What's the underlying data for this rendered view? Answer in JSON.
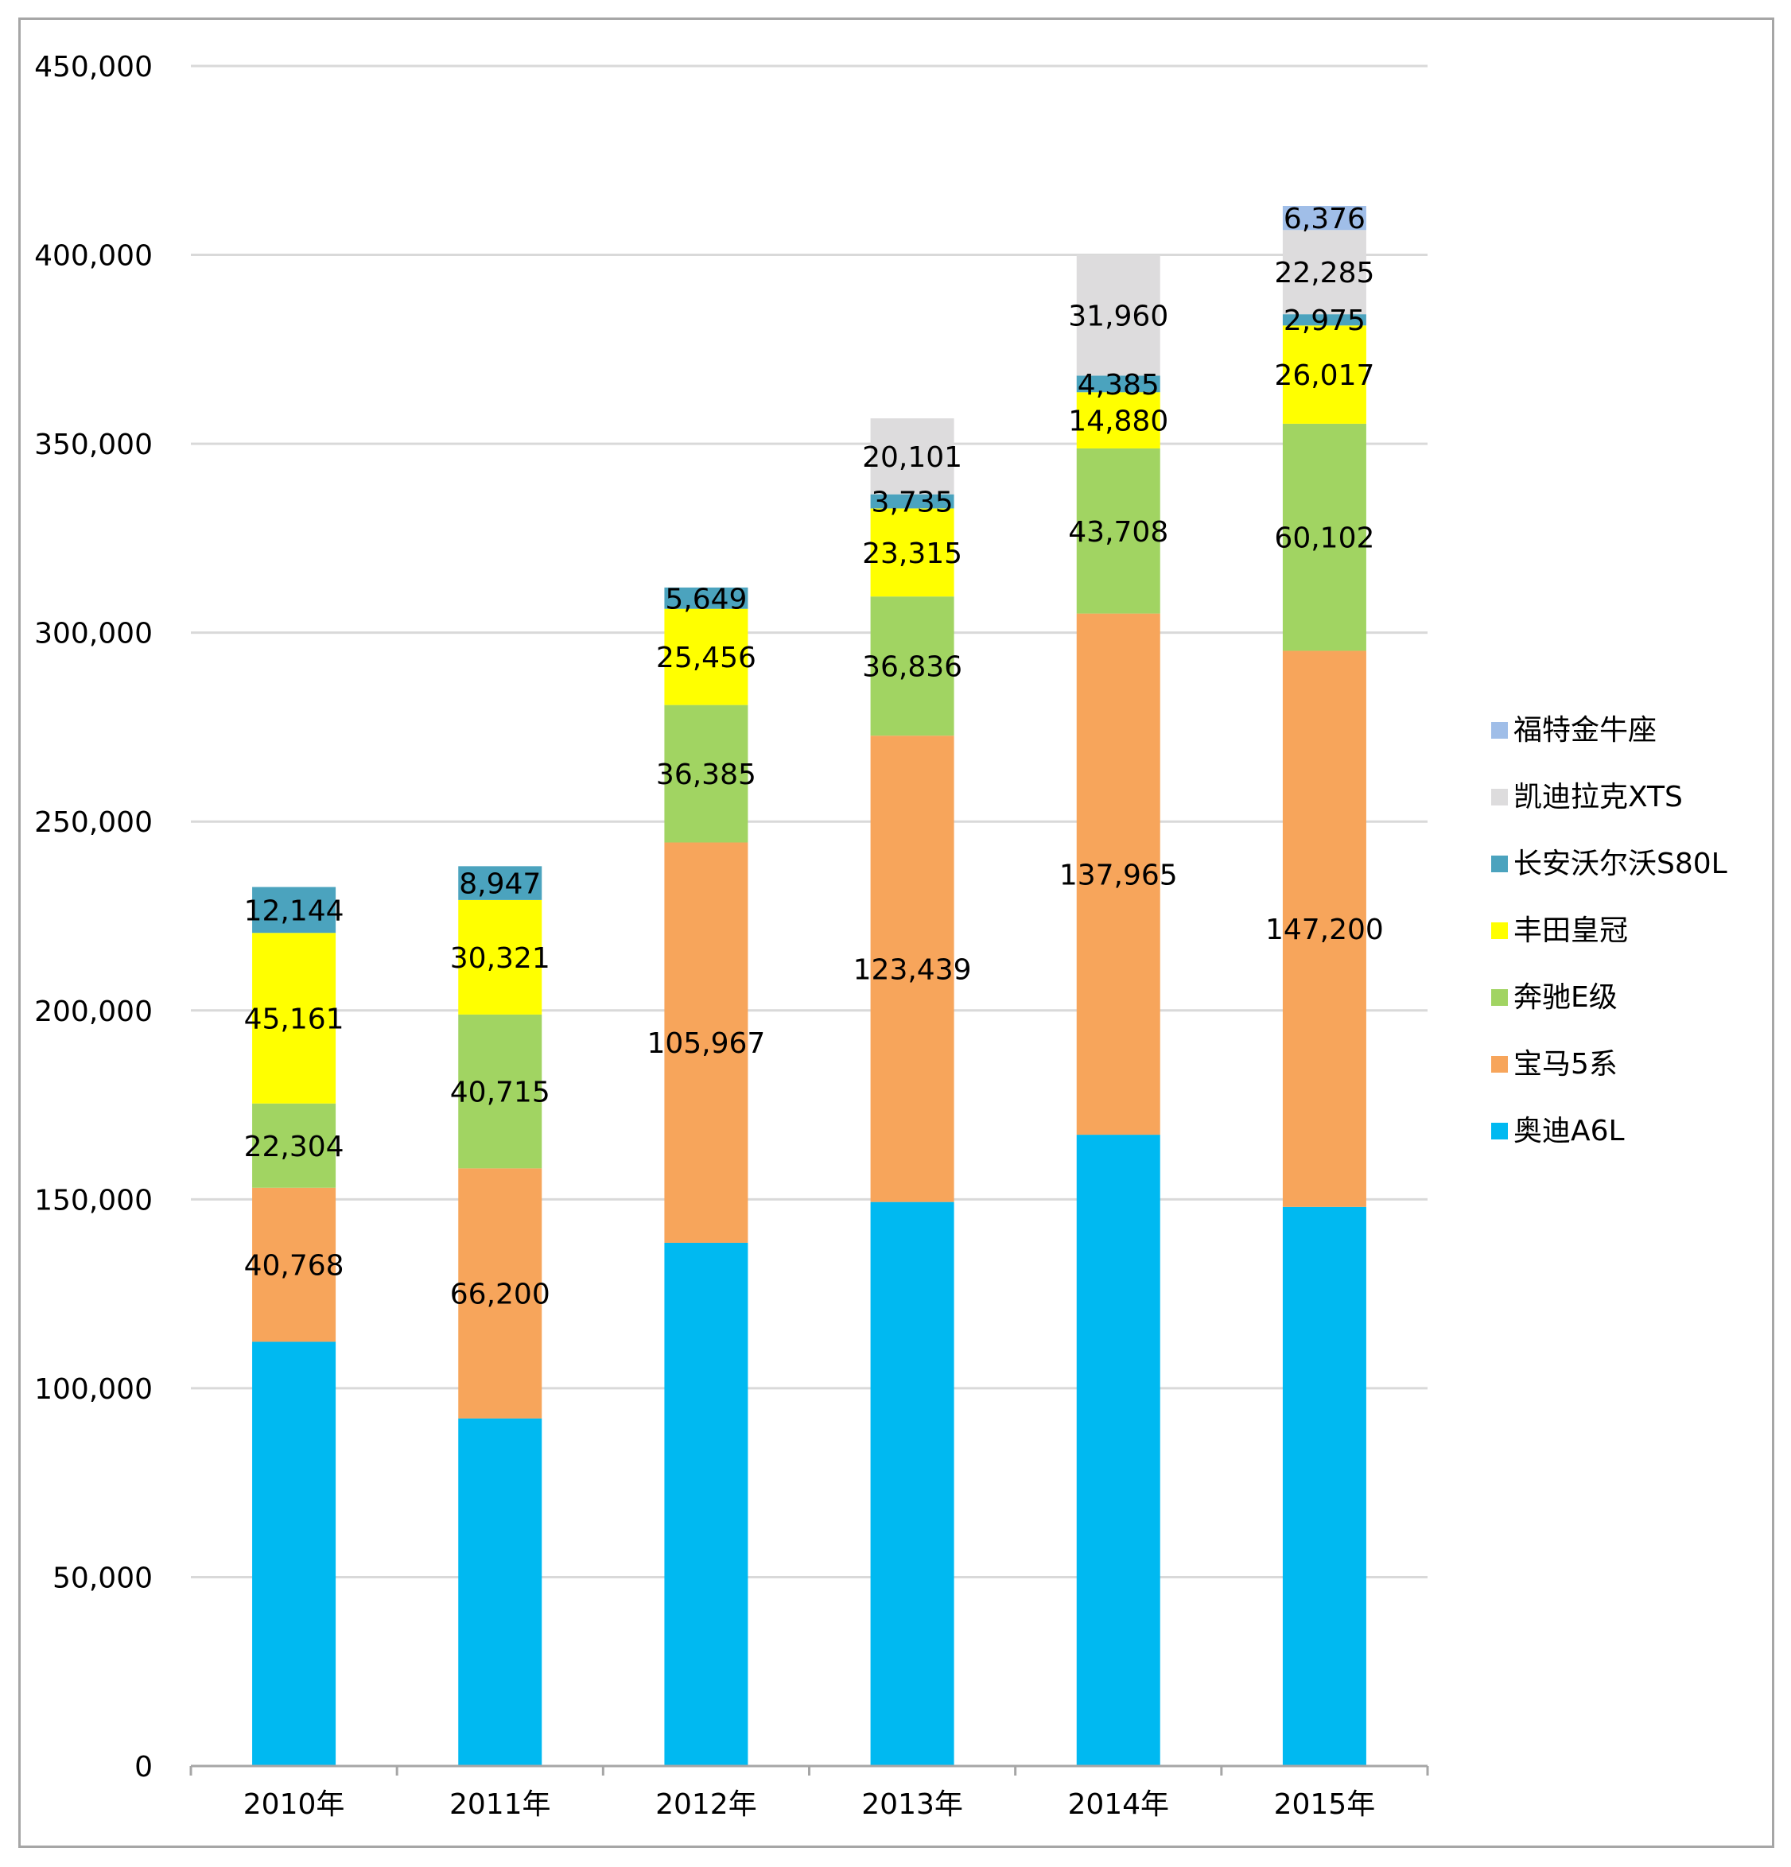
{
  "chart_data": {
    "type": "bar",
    "stacked": true,
    "title": "",
    "xlabel": "",
    "ylabel": "",
    "categories": [
      "2010年",
      "2011年",
      "2012年",
      "2013年",
      "2014年",
      "2015年"
    ],
    "ylim": [
      0,
      450000
    ],
    "yticks": [
      0,
      50000,
      100000,
      150000,
      200000,
      250000,
      300000,
      350000,
      400000,
      450000
    ],
    "ytick_labels": [
      "0",
      "50,000",
      "100,000",
      "150,000",
      "200,000",
      "250,000",
      "300,000",
      "350,000",
      "400,000",
      "450,000"
    ],
    "grid": true,
    "legend_position": "right",
    "series": [
      {
        "name": "奥迪A6L",
        "color": "#00B9F1",
        "values": [
          112300,
          92000,
          138500,
          149300,
          167100,
          148000
        ],
        "labeled": false
      },
      {
        "name": "宝马5系",
        "color": "#F7A55B",
        "values": [
          40768,
          66200,
          105967,
          123439,
          137965,
          147200
        ],
        "labels": [
          "40,768",
          "66,200",
          "105,967",
          "123,439",
          "137,965",
          "147,200"
        ],
        "labeled": true
      },
      {
        "name": "奔驰E级",
        "color": "#A1D462",
        "values": [
          22304,
          40715,
          36385,
          36836,
          43708,
          60102
        ],
        "labels": [
          "22,304",
          "40,715",
          "36,385",
          "36,836",
          "43,708",
          "60,102"
        ],
        "labeled": true
      },
      {
        "name": "丰田皇冠",
        "color": "#FFFF00",
        "values": [
          45161,
          30321,
          25456,
          23315,
          14880,
          26017
        ],
        "labels": [
          "45,161",
          "30,321",
          "25,456",
          "23,315",
          "14,880",
          "26,017"
        ],
        "labeled": true
      },
      {
        "name": "长安沃尔沃S80L",
        "color": "#4BA3BE",
        "values": [
          12144,
          8947,
          5649,
          3735,
          4385,
          2975
        ],
        "labels": [
          "12,144",
          "8,947",
          "5,649",
          "3,735",
          "4,385",
          "2,975"
        ],
        "labeled": true
      },
      {
        "name": "凯迪拉克XTS",
        "color": "#DDDCDD",
        "values": [
          0,
          0,
          0,
          20101,
          31960,
          22285
        ],
        "labels": [
          "",
          "",
          "",
          "20,101",
          "31,960",
          "22,285"
        ],
        "labeled": true
      },
      {
        "name": "福特金牛座",
        "color": "#A0BEE8",
        "values": [
          0,
          0,
          0,
          0,
          0,
          6376
        ],
        "labels": [
          "",
          "",
          "",
          "",
          "",
          "6,376"
        ],
        "labeled": true
      }
    ],
    "legend_order": [
      "福特金牛座",
      "凯迪拉克XTS",
      "长安沃尔沃S80L",
      "丰田皇冠",
      "奔驰E级",
      "宝马5系",
      "奥迪A6L"
    ]
  }
}
